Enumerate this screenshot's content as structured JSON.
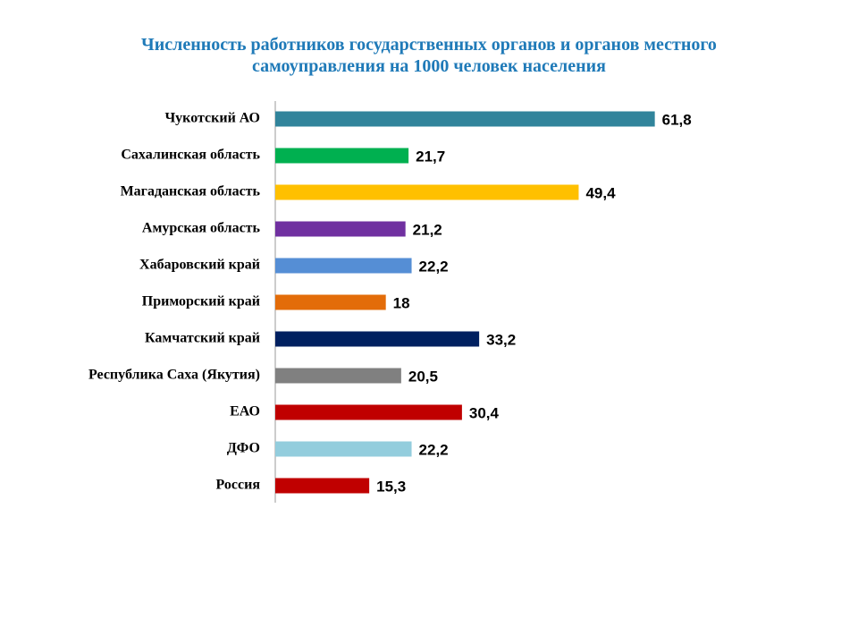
{
  "chart_data": {
    "type": "bar",
    "orientation": "horizontal",
    "title": "Численность работников государственных органов и органов местного самоуправления  на 1000 человек населения",
    "categories": [
      "Чукотский АО",
      "Сахалинская область",
      "Магаданская область",
      "Амурская область",
      "Хабаровский край",
      "Приморский край",
      "Камчатский край",
      "Республика Саха (Якутия)",
      "ЕАО",
      "ДФО",
      "Россия"
    ],
    "values": [
      61.8,
      21.7,
      49.4,
      21.2,
      22.2,
      18,
      33.2,
      20.5,
      30.4,
      22.2,
      15.3
    ],
    "value_labels": [
      "61,8",
      "21,7",
      "49,4",
      "21,2",
      "22,2",
      "18",
      "33,2",
      "20,5",
      "30,4",
      "22,2",
      "15,3"
    ],
    "colors": [
      "#31849b",
      "#00b050",
      "#ffc000",
      "#7030a0",
      "#558ed5",
      "#e36c09",
      "#002060",
      "#808080",
      "#c00000",
      "#93cddd",
      "#c00000"
    ],
    "xlim": [
      0,
      70
    ]
  }
}
